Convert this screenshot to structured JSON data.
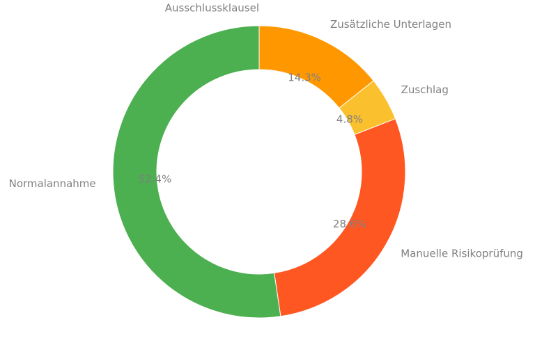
{
  "chart_data": {
    "type": "pie",
    "donut": true,
    "legend": "none",
    "label_color": "#808080",
    "slices": [
      {
        "label": "Ausschlussklausel",
        "value": 0.0,
        "pct_label": "",
        "color": "#ff9800"
      },
      {
        "label": "Zusätzliche Unterlagen",
        "value": 14.3,
        "pct_label": "14.3%",
        "color": "#ff9800"
      },
      {
        "label": "Zuschlag",
        "value": 4.8,
        "pct_label": "4.8%",
        "color": "#fbc02d"
      },
      {
        "label": "Manuelle Risikoprüfung",
        "value": 28.6,
        "pct_label": "28.6%",
        "color": "#ff5722"
      },
      {
        "label": "Normalannahme",
        "value": 52.4,
        "pct_label": "52.4%",
        "color": "#4caf50"
      }
    ]
  }
}
